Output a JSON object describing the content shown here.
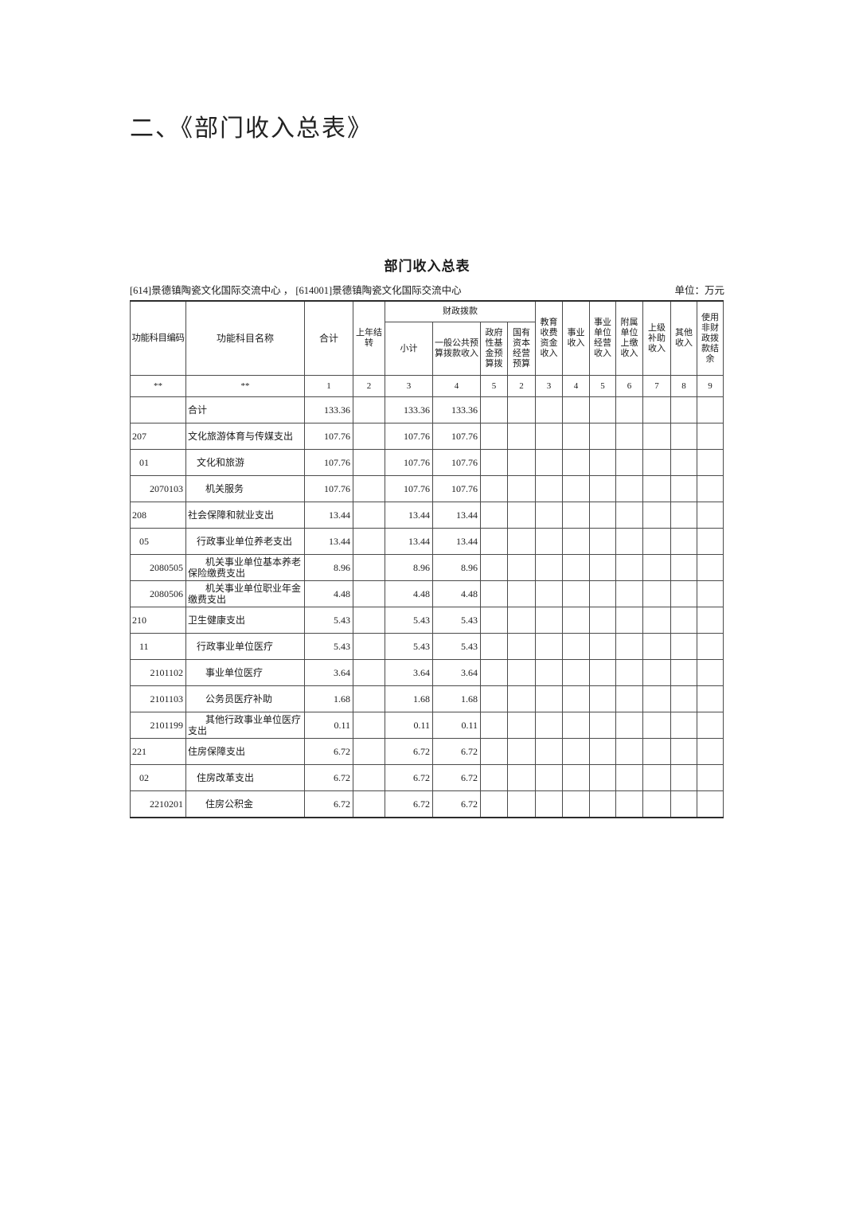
{
  "page": {
    "section_title": "二、《部门收入总表》"
  },
  "report": {
    "title": "部门收入总表",
    "org_line": "[614]景德镇陶瓷文化国际交流中心 ， [614001]景德镇陶瓷文化国际交流中心",
    "unit_label": "单位：万元"
  },
  "table": {
    "headers": {
      "code": "功能科目编码",
      "name": "功能科目名称",
      "total": "合计",
      "carryover": "上年结转",
      "fiscal_group": "财政拨款",
      "fiscal_sub": [
        "小计",
        "一般公共预算拨款收入",
        "政府性基金预算拨",
        "国有资本经营预算"
      ],
      "others": [
        "教育收费资金收入",
        "事业收入",
        "事业单位经营收入",
        "附属单位上缴收入",
        "上级补助收入",
        "其他收入",
        "使用非财政拨款结余"
      ],
      "index": [
        "**",
        "**",
        "1",
        "2",
        "3",
        "4",
        "5",
        "2",
        "3",
        "4",
        "5",
        "6",
        "7",
        "8",
        "9"
      ]
    },
    "rows": [
      {
        "code": "",
        "level": 1,
        "name": "合计",
        "total": "133.36",
        "fiscal_subtotal": "133.36",
        "general_budget": "133.36"
      },
      {
        "code": "207",
        "level": 1,
        "name": "文化旅游体育与传媒支出",
        "total": "107.76",
        "fiscal_subtotal": "107.76",
        "general_budget": "107.76"
      },
      {
        "code": "01",
        "level": 2,
        "name": "文化和旅游",
        "total": "107.76",
        "fiscal_subtotal": "107.76",
        "general_budget": "107.76"
      },
      {
        "code": "2070103",
        "level": 3,
        "name": "机关服务",
        "total": "107.76",
        "fiscal_subtotal": "107.76",
        "general_budget": "107.76"
      },
      {
        "code": "208",
        "level": 1,
        "name": "社会保障和就业支出",
        "total": "13.44",
        "fiscal_subtotal": "13.44",
        "general_budget": "13.44"
      },
      {
        "code": "05",
        "level": 2,
        "name": "行政事业单位养老支出",
        "total": "13.44",
        "fiscal_subtotal": "13.44",
        "general_budget": "13.44"
      },
      {
        "code": "2080505",
        "level": 3,
        "name": "机关事业单位基本养老保险缴费支出",
        "total": "8.96",
        "fiscal_subtotal": "8.96",
        "general_budget": "8.96"
      },
      {
        "code": "2080506",
        "level": 3,
        "name": "机关事业单位职业年金缴费支出",
        "total": "4.48",
        "fiscal_subtotal": "4.48",
        "general_budget": "4.48"
      },
      {
        "code": "210",
        "level": 1,
        "name": "卫生健康支出",
        "total": "5.43",
        "fiscal_subtotal": "5.43",
        "general_budget": "5.43"
      },
      {
        "code": "11",
        "level": 2,
        "name": "行政事业单位医疗",
        "total": "5.43",
        "fiscal_subtotal": "5.43",
        "general_budget": "5.43"
      },
      {
        "code": "2101102",
        "level": 3,
        "name": "事业单位医疗",
        "total": "3.64",
        "fiscal_subtotal": "3.64",
        "general_budget": "3.64"
      },
      {
        "code": "2101103",
        "level": 3,
        "name": "公务员医疗补助",
        "total": "1.68",
        "fiscal_subtotal": "1.68",
        "general_budget": "1.68"
      },
      {
        "code": "2101199",
        "level": 3,
        "name": "其他行政事业单位医疗支出",
        "total": "0.11",
        "fiscal_subtotal": "0.11",
        "general_budget": "0.11"
      },
      {
        "code": "221",
        "level": 1,
        "name": "住房保障支出",
        "total": "6.72",
        "fiscal_subtotal": "6.72",
        "general_budget": "6.72"
      },
      {
        "code": "02",
        "level": 2,
        "name": "住房改革支出",
        "total": "6.72",
        "fiscal_subtotal": "6.72",
        "general_budget": "6.72"
      },
      {
        "code": "2210201",
        "level": 3,
        "name": "住房公积金",
        "total": "6.72",
        "fiscal_subtotal": "6.72",
        "general_budget": "6.72"
      }
    ]
  }
}
